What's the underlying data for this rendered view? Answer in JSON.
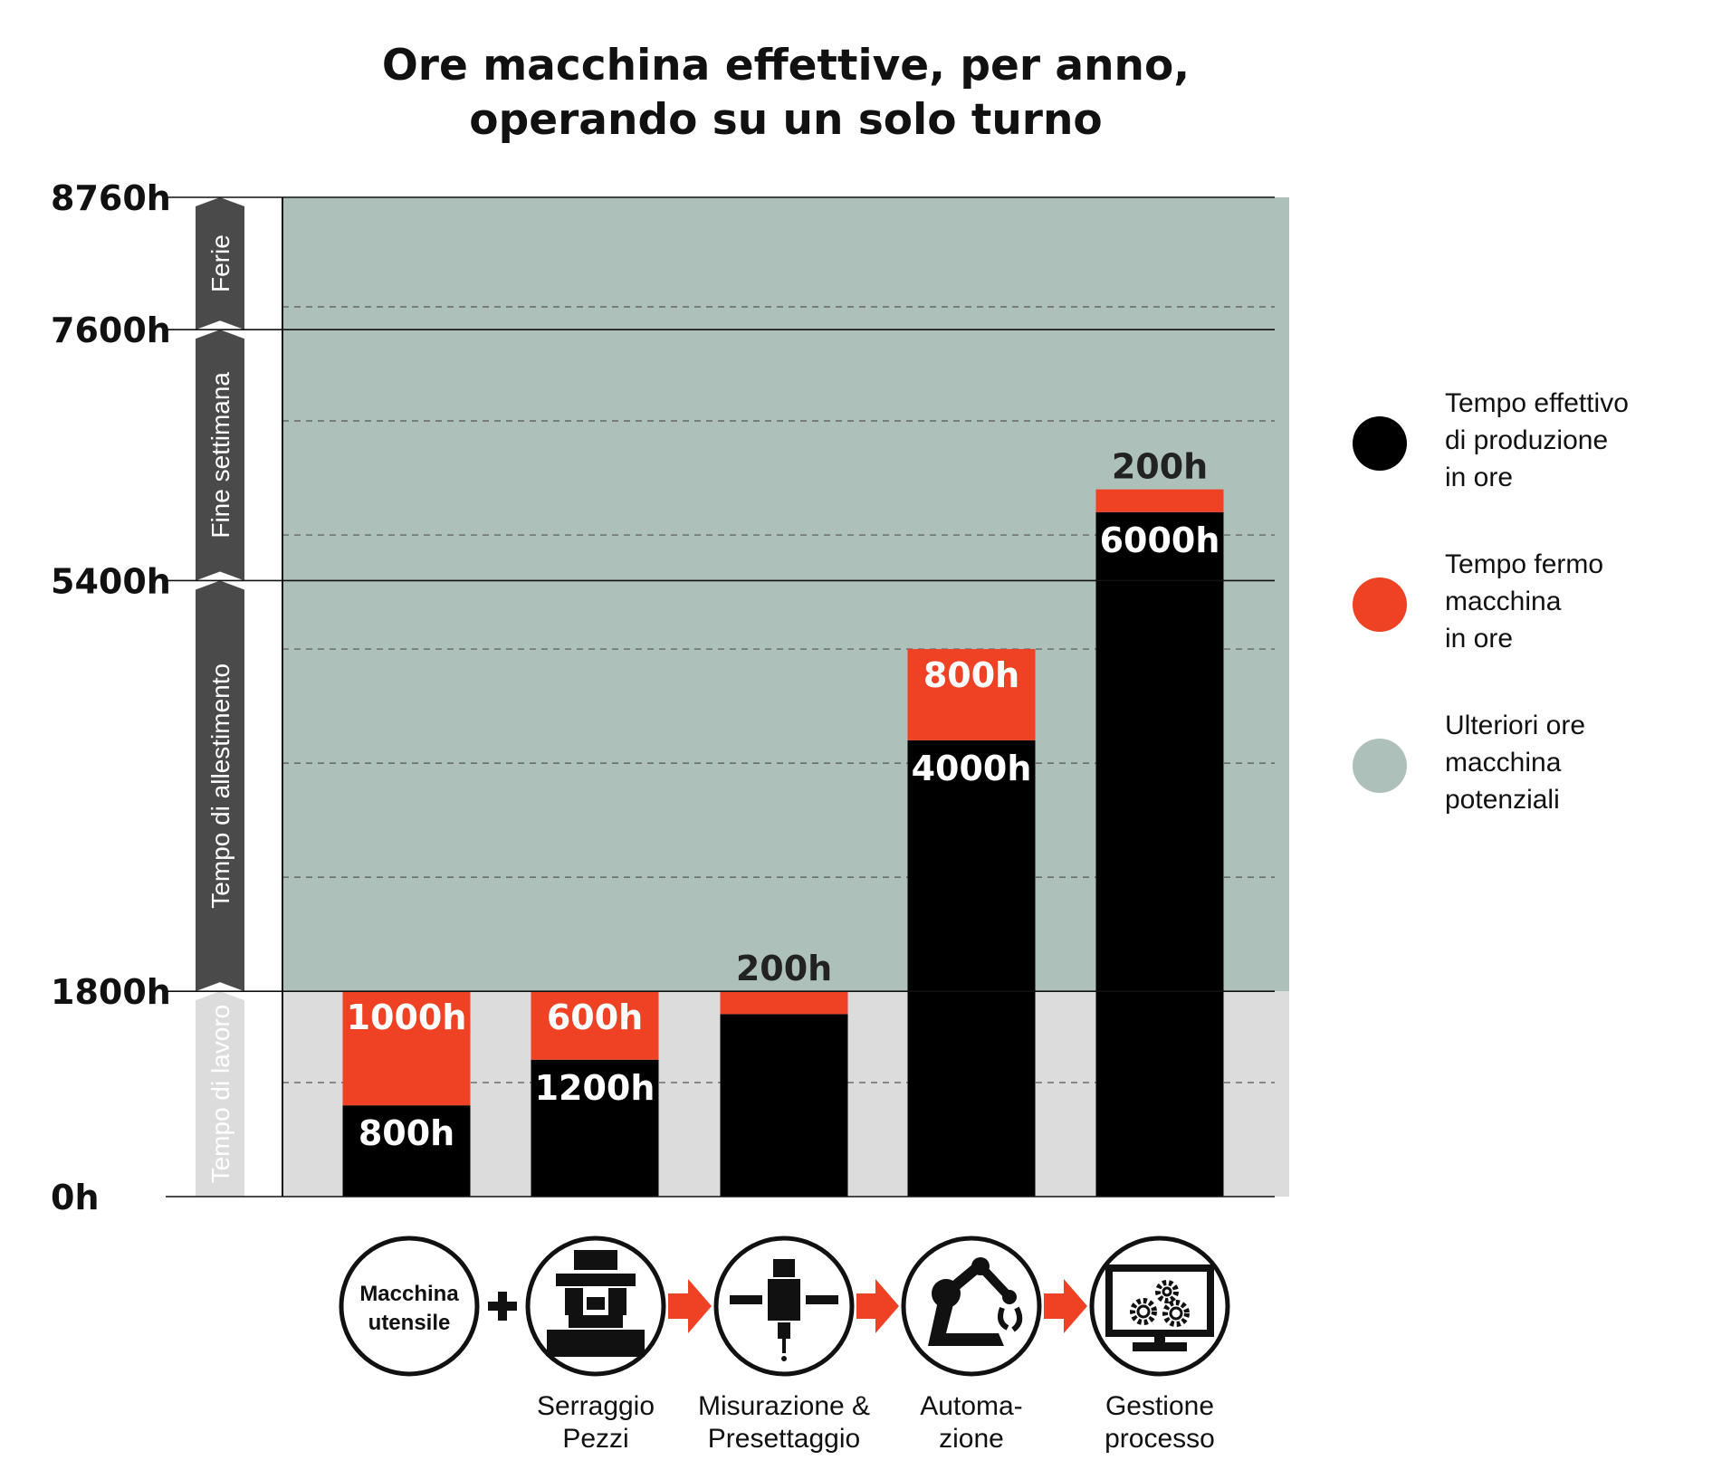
{
  "chart_data": {
    "type": "bar",
    "stacked": true,
    "title": "Ore macchina effettive, per anno, operando su un solo turno",
    "title_lines": [
      "Ore macchina effettive, per anno,",
      "operando su un solo turno"
    ],
    "ylim": [
      0,
      8760
    ],
    "y_ticks": [
      {
        "value": 0,
        "label": "0h"
      },
      {
        "value": 1800,
        "label": "1800h"
      },
      {
        "value": 5400,
        "label": "5400h"
      },
      {
        "value": 7600,
        "label": "7600h"
      },
      {
        "value": 8760,
        "label": "8760h"
      }
    ],
    "y_gridlines_dashed": [
      1000,
      1800,
      2800,
      3800,
      4800,
      5800,
      6800,
      7800
    ],
    "background_regions": [
      {
        "from": 0,
        "to": 1800,
        "color": "#dcdcdc"
      },
      {
        "from": 1800,
        "to": 8760,
        "color": "#adc1ba"
      }
    ],
    "bands": [
      {
        "label": "Tempo di lavoro",
        "from": 0,
        "to": 1800
      },
      {
        "label": "Tempo di allestimento",
        "from": 1800,
        "to": 5400
      },
      {
        "label": "Fine settimana",
        "from": 5400,
        "to": 7600
      },
      {
        "label": "Ferie",
        "from": 7600,
        "to": 8760
      }
    ],
    "categories": [
      "Macchina utensile",
      "Serraggio Pezzi",
      "Misurazione & Presettaggio",
      "Automazione",
      "Gestione processo"
    ],
    "series": [
      {
        "name": "Tempo effettivo di produzione in ore",
        "color": "#000000",
        "values": [
          800,
          1200,
          1600,
          4000,
          6000
        ],
        "labels": [
          "800h",
          "1200h",
          "",
          "4000h",
          "6000h"
        ]
      },
      {
        "name": "Tempo fermo macchina in ore",
        "color": "#ef4123",
        "values": [
          1000,
          600,
          200,
          800,
          200
        ],
        "labels": [
          "1000h",
          "600h",
          "200h",
          "800h",
          "200h"
        ]
      }
    ],
    "legend": [
      {
        "lines": [
          "Tempo effettivo",
          "di produzione",
          "in ore"
        ],
        "color": "#000000"
      },
      {
        "lines": [
          "Tempo fermo",
          "macchina",
          "in ore"
        ],
        "color": "#ef4123"
      },
      {
        "lines": [
          "Ulteriori ore",
          "macchina",
          "potenziali"
        ],
        "color": "#adc1ba"
      }
    ],
    "legend_position": "right",
    "steps": [
      {
        "icon": "machine-tool-text-icon",
        "inner_lines": [
          "Macchina",
          "utensile"
        ],
        "caption_lines": []
      },
      {
        "icon": "workholding-vise-icon",
        "inner_lines": [],
        "caption_lines": [
          "Serraggio",
          "Pezzi"
        ]
      },
      {
        "icon": "measuring-probe-icon",
        "inner_lines": [],
        "caption_lines": [
          "Misurazione &",
          "Presettaggio"
        ]
      },
      {
        "icon": "robot-arm-icon",
        "inner_lines": [],
        "caption_lines": [
          "Automa-",
          "zione"
        ]
      },
      {
        "icon": "monitor-gears-icon",
        "inner_lines": [],
        "caption_lines": [
          "Gestione",
          "processo"
        ]
      }
    ],
    "connectors": [
      "plus",
      "arrow",
      "arrow",
      "arrow"
    ]
  }
}
